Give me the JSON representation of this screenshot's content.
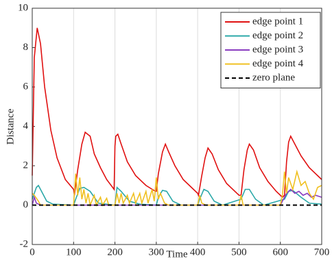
{
  "chart_data": {
    "type": "line",
    "xlabel": "Time",
    "ylabel": "Distance",
    "xlim": [
      0,
      700
    ],
    "xticks": [
      0,
      100,
      200,
      300,
      400,
      500,
      600,
      700
    ],
    "ylim": [
      -2,
      10
    ],
    "yticks": [
      -2,
      0,
      2,
      4,
      6,
      8,
      10
    ],
    "grid": "x",
    "legend": "upper right",
    "series": [
      {
        "name": "edge point 1",
        "color": "#e01010",
        "style": "solid",
        "x": [
          0,
          5,
          12,
          20,
          30,
          45,
          60,
          80,
          100,
          102,
          110,
          120,
          128,
          140,
          150,
          165,
          180,
          198,
          200,
          202,
          207,
          215,
          230,
          250,
          275,
          298,
          300,
          305,
          315,
          322,
          330,
          345,
          365,
          385,
          400,
          402,
          410,
          418,
          425,
          435,
          450,
          470,
          500,
          505,
          512,
          520,
          525,
          535,
          550,
          570,
          590,
          605,
          610,
          615,
          620,
          625,
          635,
          650,
          670,
          690,
          700
        ],
        "values": [
          1.5,
          7.5,
          9.0,
          8.2,
          6.0,
          3.8,
          2.4,
          1.3,
          0.8,
          0.5,
          1.8,
          3.1,
          3.7,
          3.5,
          2.6,
          1.9,
          1.3,
          0.8,
          3.0,
          3.5,
          3.6,
          3.1,
          2.2,
          1.5,
          1.0,
          0.7,
          0.7,
          1.6,
          2.7,
          3.1,
          2.7,
          2.0,
          1.3,
          0.9,
          0.6,
          0.5,
          1.5,
          2.4,
          2.9,
          2.6,
          1.8,
          1.1,
          0.5,
          0.5,
          1.8,
          2.8,
          3.1,
          2.8,
          1.9,
          1.2,
          0.7,
          0.4,
          0.5,
          2.2,
          3.2,
          3.5,
          3.1,
          2.5,
          1.9,
          1.5,
          1.3
        ]
      },
      {
        "name": "edge point 2",
        "color": "#2aa8a8",
        "style": "solid",
        "x": [
          0,
          10,
          15,
          25,
          35,
          50,
          100,
          105,
          115,
          125,
          140,
          160,
          200,
          205,
          215,
          235,
          260,
          300,
          305,
          315,
          325,
          340,
          360,
          400,
          405,
          415,
          425,
          440,
          460,
          505,
          515,
          525,
          540,
          560,
          610,
          620,
          630,
          650,
          670,
          700
        ],
        "values": [
          0.3,
          0.9,
          1.0,
          0.6,
          0.2,
          0.05,
          0,
          0.3,
          0.85,
          0.9,
          0.7,
          0.1,
          0,
          0.9,
          0.7,
          0.2,
          0.05,
          0,
          0.4,
          0.75,
          0.7,
          0.2,
          0,
          0,
          0.3,
          0.8,
          0.7,
          0.2,
          0,
          0.3,
          0.8,
          0.8,
          0.3,
          0,
          0.3,
          0.7,
          0.75,
          0.4,
          0.1,
          0.05
        ]
      },
      {
        "name": "edge point 3",
        "color": "#8a3cc0",
        "style": "solid",
        "x": [
          0,
          5,
          10,
          20,
          100,
          600,
          615,
          625,
          635,
          645,
          655,
          665,
          675,
          685,
          700
        ],
        "values": [
          0,
          0.4,
          0.1,
          0,
          0,
          0,
          0.6,
          0.8,
          0.6,
          0.7,
          0.5,
          0.6,
          0.4,
          0.5,
          0.4
        ]
      },
      {
        "name": "edge point 4",
        "color": "#f0c020",
        "style": "solid",
        "x": [
          0,
          5,
          15,
          20,
          100,
          105,
          110,
          115,
          120,
          125,
          130,
          135,
          140,
          150,
          155,
          165,
          170,
          180,
          185,
          200,
          205,
          210,
          215,
          220,
          230,
          235,
          245,
          250,
          260,
          265,
          275,
          280,
          290,
          295,
          300,
          305,
          310,
          320,
          330,
          400,
          405,
          410,
          420,
          500,
          505,
          510,
          600,
          605,
          610,
          615,
          620,
          630,
          640,
          650,
          660,
          670,
          680,
          690,
          700
        ],
        "values": [
          0.6,
          0.5,
          0.2,
          0,
          0,
          1.6,
          0.5,
          1.4,
          0.3,
          0.8,
          0.1,
          0.6,
          0,
          0.5,
          0,
          0.4,
          0,
          0.35,
          0,
          0,
          0.6,
          0.1,
          0.6,
          0.1,
          0.5,
          0.1,
          0.6,
          0.1,
          0.6,
          0.1,
          0.7,
          0.1,
          0.8,
          0.2,
          1.4,
          0.3,
          0.6,
          0.1,
          0,
          0,
          0.5,
          0.1,
          0,
          0,
          0.5,
          0,
          0,
          0.5,
          1.7,
          0.6,
          1.4,
          0.8,
          1.7,
          1.0,
          1.2,
          0.6,
          0.3,
          0.9,
          1.0
        ]
      },
      {
        "name": "zero plane",
        "color": "#000000",
        "style": "dashed",
        "x": [
          0,
          700
        ],
        "values": [
          0,
          0
        ]
      }
    ]
  }
}
